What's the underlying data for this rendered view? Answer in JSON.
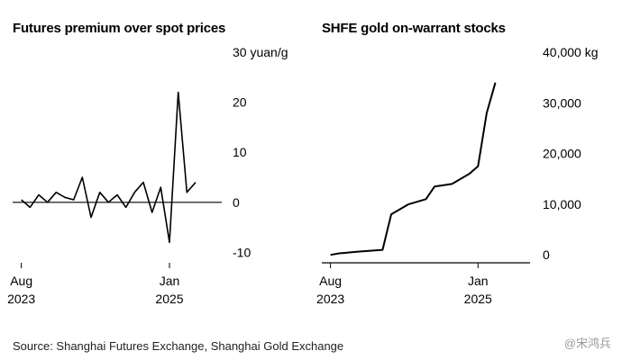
{
  "source_note": "Source: Shanghai Futures Exchange, Shanghai Gold Exchange",
  "watermark": "@宋鸿兵",
  "chart_data": [
    {
      "type": "line",
      "title": "Futures premium over spot prices",
      "unit_label": "30 yuan/g",
      "y_ticks": [
        "30 yuan/g",
        "20",
        "10",
        "0",
        "-10"
      ],
      "y_tick_values": [
        30,
        20,
        10,
        0,
        -10
      ],
      "x_ticks": [
        {
          "line1": "Aug",
          "line2": "2023"
        },
        {
          "line1": "Jan",
          "line2": "2025"
        }
      ],
      "x_tick_dates": [
        "2023-08",
        "2025-01"
      ],
      "ylim": [
        -11,
        30
      ],
      "grid": false,
      "series_color": "#000000",
      "series": [
        {
          "points": [
            [
              "2023-08",
              0.5
            ],
            [
              "2023-09",
              -1
            ],
            [
              "2023-10",
              1.5
            ],
            [
              "2023-11",
              0
            ],
            [
              "2023-12",
              2
            ],
            [
              "2024-01",
              1
            ],
            [
              "2024-02",
              0.5
            ],
            [
              "2024-03",
              5
            ],
            [
              "2024-04",
              -3
            ],
            [
              "2024-05",
              2
            ],
            [
              "2024-06",
              0
            ],
            [
              "2024-07",
              1.5
            ],
            [
              "2024-08",
              -1
            ],
            [
              "2024-09",
              2
            ],
            [
              "2024-10",
              4
            ],
            [
              "2024-11",
              -2
            ],
            [
              "2024-12",
              3
            ],
            [
              "2025-01",
              -8
            ],
            [
              "2025-02",
              22
            ],
            [
              "2025-03",
              2
            ],
            [
              "2025-04",
              4
            ]
          ]
        }
      ]
    },
    {
      "type": "line",
      "title": "SHFE gold on-warrant stocks",
      "unit_label": "40,000 kg",
      "y_ticks": [
        "40,000 kg",
        "30,000",
        "20,000",
        "10,000",
        "0"
      ],
      "y_tick_values": [
        40000,
        30000,
        20000,
        10000,
        0
      ],
      "x_ticks": [
        {
          "line1": "Aug",
          "line2": "2023"
        },
        {
          "line1": "Jan",
          "line2": "2025"
        }
      ],
      "x_tick_dates": [
        "2023-08",
        "2025-01"
      ],
      "ylim": [
        -500,
        40000
      ],
      "grid": false,
      "series_color": "#000000",
      "series": [
        {
          "points": [
            [
              "2023-08",
              0
            ],
            [
              "2023-09",
              300
            ],
            [
              "2023-11",
              600
            ],
            [
              "2024-02",
              1000
            ],
            [
              "2024-03",
              8000
            ],
            [
              "2024-05",
              10000
            ],
            [
              "2024-07",
              11000
            ],
            [
              "2024-08",
              13500
            ],
            [
              "2024-10",
              14000
            ],
            [
              "2024-12",
              16000
            ],
            [
              "2025-01",
              17500
            ],
            [
              "2025-02",
              28000
            ],
            [
              "2025-03",
              34000
            ]
          ]
        }
      ]
    }
  ]
}
